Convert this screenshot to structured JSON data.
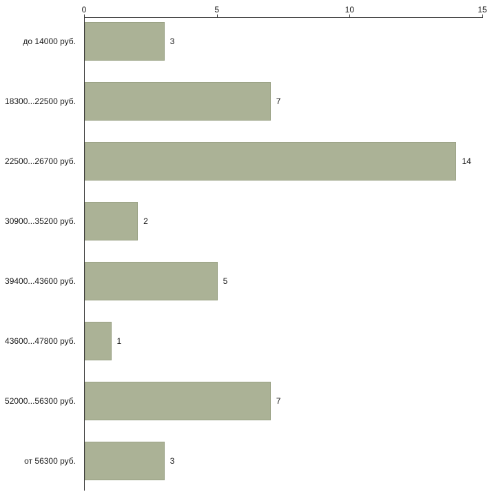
{
  "chart_data": {
    "type": "bar",
    "orientation": "horizontal",
    "title": "",
    "xlabel": "",
    "ylabel": "",
    "categories": [
      "до 14000 руб.",
      "18300...22500 руб.",
      "22500...26700 руб.",
      "30900...35200 руб.",
      "39400...43600 руб.",
      "43600...47800 руб.",
      "52000...56300 руб.",
      "от 56300 руб."
    ],
    "values": [
      3,
      7,
      14,
      2,
      5,
      1,
      7,
      3
    ],
    "xlim": [
      0,
      15
    ],
    "x_ticks": [
      0,
      5,
      10,
      15
    ],
    "grid": false,
    "legend": "none",
    "bar_color": "#abb296",
    "bar_border_color": "#99a184",
    "axis_color": "#3a3a3a",
    "text_color": "#1a1a1a",
    "background_color": "#ffffff"
  }
}
